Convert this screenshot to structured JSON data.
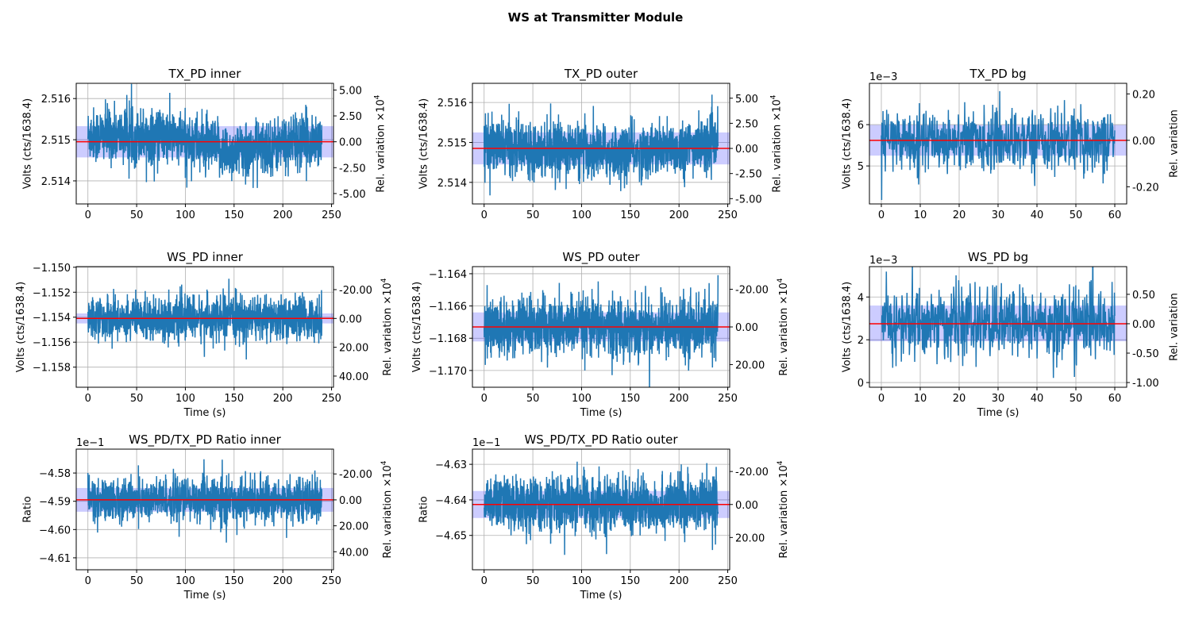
{
  "figure_title": "WS at Transmitter Module",
  "colors": {
    "series": "#1f77b4",
    "mean_line": "#ff0000",
    "band": "#0000ff",
    "grid": "#b0b0b0"
  },
  "chart_data": [
    {
      "type": "line",
      "title": "TX_PD inner",
      "ylabel": "Volts (cts/1638.4)",
      "xlabel": "",
      "offset_text": "",
      "xlim": [
        -12,
        252
      ],
      "xticks": [
        0,
        50,
        100,
        150,
        200,
        250
      ],
      "x_range": [
        0,
        240
      ],
      "ylim": [
        2.51344,
        2.51637
      ],
      "yticks": [
        2.514,
        2.515,
        2.516
      ],
      "ytick_labels": [
        "2.514",
        "2.515",
        "2.516"
      ],
      "mean": 2.51495,
      "band": [
        2.51457,
        2.51533
      ],
      "right_label": "Rel. variation ×10",
      "right_label_exp": "4",
      "right_scale": 0.0001,
      "right_ticks": [
        -5,
        -2.5,
        0,
        2.5,
        5
      ],
      "right_tick_labels": [
        "-5.00",
        "-2.50",
        "0.00",
        "2.50",
        "5.00"
      ],
      "center_trend": [
        [
          0,
          2.51512
        ],
        [
          80,
          2.51508
        ],
        [
          150,
          2.51468
        ],
        [
          240,
          2.51505
        ]
      ],
      "noise_sd": 0.00033,
      "grid": true
    },
    {
      "type": "line",
      "title": "TX_PD outer",
      "ylabel": "Volts (cts/1638.4)",
      "xlabel": "",
      "offset_text": "",
      "xlim": [
        -12,
        252
      ],
      "xticks": [
        0,
        50,
        100,
        150,
        200,
        250
      ],
      "x_range": [
        0,
        240
      ],
      "ylim": [
        2.51346,
        2.51648
      ],
      "yticks": [
        2.514,
        2.515,
        2.516
      ],
      "ytick_labels": [
        "2.514",
        "2.515",
        "2.516"
      ],
      "mean": 2.51485,
      "band": [
        2.51445,
        2.51525
      ],
      "right_label": "Rel. variation ×10",
      "right_label_exp": "4",
      "right_scale": 0.0001,
      "right_ticks": [
        -5,
        -2.5,
        0,
        2.5,
        5
      ],
      "right_tick_labels": [
        "-5.00",
        "-2.50",
        "0.00",
        "2.50",
        "5.00"
      ],
      "center_trend": [
        [
          0,
          2.51492
        ],
        [
          70,
          2.51485
        ],
        [
          140,
          2.51472
        ],
        [
          240,
          2.51495
        ]
      ],
      "noise_sd": 0.00033,
      "grid": true
    },
    {
      "type": "line",
      "title": "TX_PD bg",
      "ylabel": "Volts (cts/1638.4)",
      "xlabel": "",
      "offset_text": "1e−3",
      "xlim": [
        -3.06,
        63.06
      ],
      "xticks": [
        0,
        10,
        20,
        30,
        40,
        50,
        60
      ],
      "x_range": [
        0,
        60
      ],
      "ylim": [
        4.08,
        7.0
      ],
      "yticks": [
        5,
        6
      ],
      "ytick_labels": [
        "5",
        "6"
      ],
      "mean": 5.62,
      "band": [
        5.25,
        5.99
      ],
      "right_label": "Rel. variation",
      "right_label_exp": "",
      "right_scale": 1,
      "right_ticks": [
        -0.2,
        0,
        0.2
      ],
      "right_tick_labels": [
        "-0.20",
        "0.00",
        "0.20"
      ],
      "center_trend": [
        [
          0,
          5.62
        ],
        [
          60,
          5.62
        ]
      ],
      "noise_sd": 0.36,
      "grid": true
    },
    {
      "type": "line",
      "title": "WS_PD inner",
      "ylabel": "Volts (cts/1638.4)",
      "xlabel": "Time (s)",
      "offset_text": "",
      "xlim": [
        -12,
        252
      ],
      "xticks": [
        0,
        50,
        100,
        150,
        200,
        250
      ],
      "x_range": [
        0,
        240
      ],
      "ylim": [
        -1.15961,
        -1.14995
      ],
      "yticks": [
        -1.158,
        -1.156,
        -1.154,
        -1.152,
        -1.15
      ],
      "ytick_labels": [
        "−1.158",
        "−1.156",
        "−1.154",
        "−1.152",
        "−1.150"
      ],
      "mean": -1.1541,
      "band": [
        -1.1545,
        -1.1537
      ],
      "right_label": "Rel. variation ×10",
      "right_label_exp": "4",
      "right_scale": 0.0001,
      "right_ticks": [
        -20,
        0,
        20,
        40
      ],
      "right_tick_labels": [
        "-20.00",
        "0.00",
        "20.00",
        "40.00"
      ],
      "center_trend": [
        [
          0,
          -1.1541
        ],
        [
          240,
          -1.1541
        ]
      ],
      "noise_sd": 0.00085,
      "grid": true
    },
    {
      "type": "line",
      "title": "WS_PD outer",
      "ylabel": "Volts (cts/1638.4)",
      "xlabel": "Time (s)",
      "offset_text": "",
      "xlim": [
        -12,
        252
      ],
      "xticks": [
        0,
        50,
        100,
        150,
        200,
        250
      ],
      "x_range": [
        0,
        240
      ],
      "ylim": [
        -1.17104,
        -1.16356
      ],
      "yticks": [
        -1.17,
        -1.168,
        -1.166,
        -1.164
      ],
      "ytick_labels": [
        "−1.170",
        "−1.168",
        "−1.166",
        "−1.164"
      ],
      "mean": -1.1673,
      "band": [
        -1.1682,
        -1.1664
      ],
      "right_label": "Rel. variation ×10",
      "right_label_exp": "4",
      "right_scale": 0.0001,
      "right_ticks": [
        -20,
        0,
        20
      ],
      "right_tick_labels": [
        "-20.00",
        "0.00",
        "20.00"
      ],
      "center_trend": [
        [
          0,
          -1.1673
        ],
        [
          240,
          -1.1673
        ]
      ],
      "noise_sd": 0.0009,
      "grid": true
    },
    {
      "type": "line",
      "title": "WS_PD bg",
      "ylabel": "Volts (cts/1638.4)",
      "xlabel": "Time (s)",
      "offset_text": "1e−3",
      "xlim": [
        -3.06,
        63.06
      ],
      "xticks": [
        0,
        10,
        20,
        30,
        40,
        50,
        60
      ],
      "x_range": [
        0,
        60
      ],
      "ylim": [
        -0.22,
        5.42
      ],
      "yticks": [
        0,
        2,
        4
      ],
      "ytick_labels": [
        "0",
        "2",
        "4"
      ],
      "mean": 2.75,
      "band": [
        1.93,
        3.6
      ],
      "right_label": "Rel. variation",
      "right_label_exp": "",
      "right_scale": 1,
      "right_ticks": [
        -1,
        -0.5,
        0,
        0.5
      ],
      "right_tick_labels": [
        "-1.00",
        "-0.50",
        "0.00",
        "0.50"
      ],
      "center_trend": [
        [
          0,
          2.75
        ],
        [
          60,
          2.75
        ]
      ],
      "noise_sd": 0.82,
      "grid": true
    },
    {
      "type": "line",
      "title": "WS_PD/TX_PD Ratio inner",
      "ylabel": "Ratio",
      "xlabel": "Time (s)",
      "offset_text": "1e−1",
      "xlim": [
        -12,
        252
      ],
      "xticks": [
        0,
        50,
        100,
        150,
        200,
        250
      ],
      "x_range": [
        0,
        240
      ],
      "ylim": [
        -4.61423,
        -4.57155
      ],
      "yticks": [
        -4.61,
        -4.6,
        -4.59,
        -4.58
      ],
      "ytick_labels": [
        "−4.61",
        "−4.60",
        "−4.59",
        "−4.58"
      ],
      "mean": -4.5895,
      "band": [
        -4.5937,
        -4.5853
      ],
      "right_label": "Rel. variation ×10",
      "right_label_exp": "4",
      "right_scale": 0.0001,
      "right_ticks": [
        -20,
        0,
        20,
        40
      ],
      "right_tick_labels": [
        "-20.00",
        "0.00",
        "20.00",
        "40.00"
      ],
      "center_trend": [
        [
          0,
          -4.5895
        ],
        [
          240,
          -4.5895
        ]
      ],
      "noise_sd": 0.0037,
      "grid": true
    },
    {
      "type": "line",
      "title": "WS_PD/TX_PD Ratio outer",
      "ylabel": "Ratio",
      "xlabel": "Time (s)",
      "offset_text": "1e−1",
      "xlim": [
        -12,
        252
      ],
      "xticks": [
        0,
        50,
        100,
        150,
        200,
        250
      ],
      "x_range": [
        0,
        240
      ],
      "ylim": [
        -4.65966,
        -4.62573
      ],
      "yticks": [
        -4.65,
        -4.64,
        -4.63
      ],
      "ytick_labels": [
        "−4.65",
        "−4.64",
        "−4.63"
      ],
      "mean": -4.6413,
      "band": [
        -4.6451,
        -4.6375
      ],
      "right_label": "Rel. variation ×10",
      "right_label_exp": "4",
      "right_scale": 0.0001,
      "right_ticks": [
        -20,
        0,
        20
      ],
      "right_tick_labels": [
        "-20.00",
        "0.00",
        "20.00"
      ],
      "center_trend": [
        [
          0,
          -4.6413
        ],
        [
          240,
          -4.6413
        ]
      ],
      "noise_sd": 0.0038,
      "grid": true
    }
  ]
}
